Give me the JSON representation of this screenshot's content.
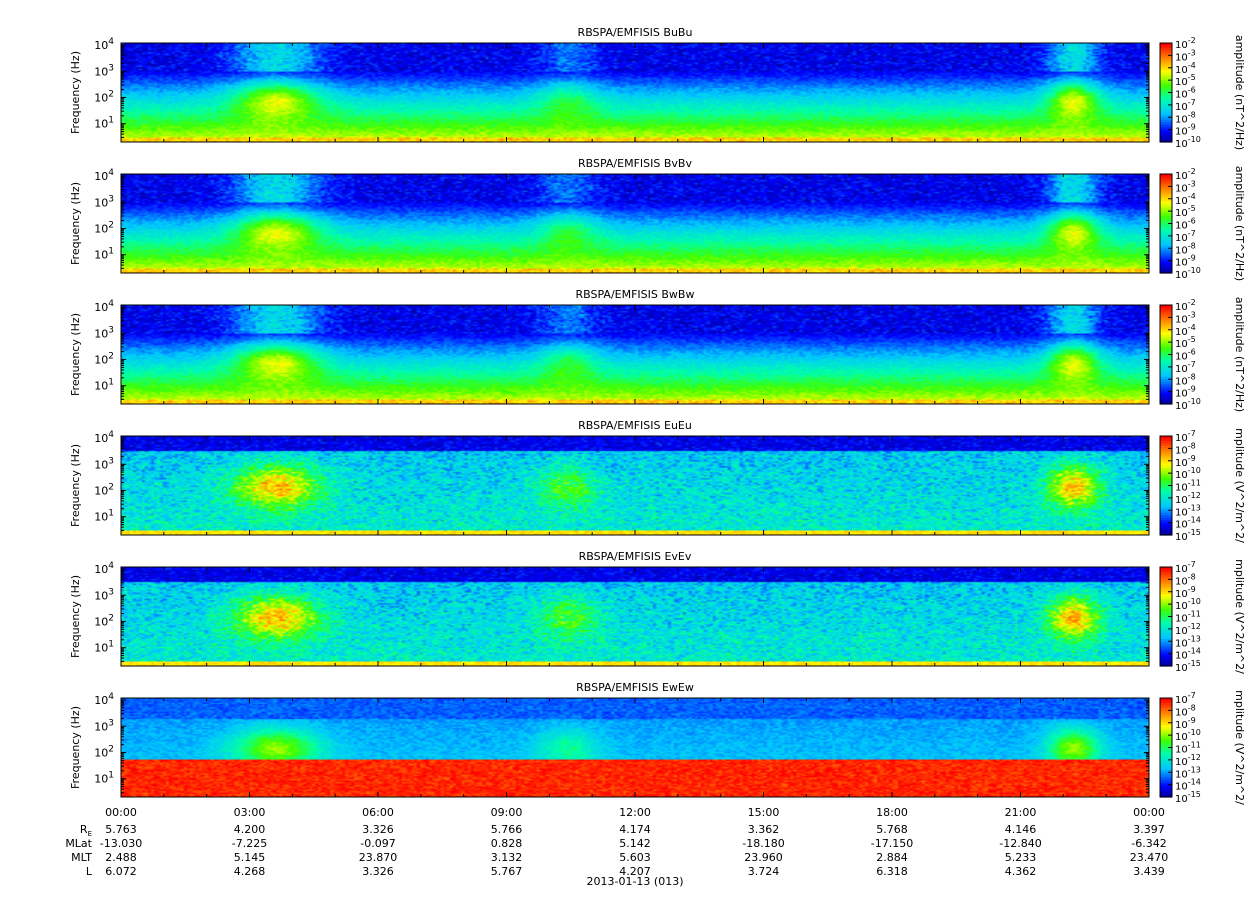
{
  "chart_data": [
    {
      "type": "heatmap",
      "title": "RBSPA/EMFISIS  BuBu",
      "ylabel": "Frequency (Hz)",
      "yscale": "log",
      "ylim": [
        2,
        12000
      ],
      "y_ticks": [
        10,
        100,
        1000,
        10000
      ],
      "y_tick_labels": [
        "10",
        "10",
        "10",
        "10"
      ],
      "y_tick_exps": [
        "1",
        "2",
        "3",
        "4"
      ],
      "colorbar": {
        "label": "amplitude (nT^2/Hz)",
        "scale": "log",
        "range": [
          1e-10,
          0.01
        ],
        "tick_exps": [
          "-2",
          "-3",
          "-4",
          "-5",
          "-6",
          "-7",
          "-8",
          "-9",
          "-10"
        ]
      }
    },
    {
      "type": "heatmap",
      "title": "RBSPA/EMFISIS  BvBv",
      "ylabel": "Frequency (Hz)",
      "yscale": "log",
      "ylim": [
        2,
        12000
      ],
      "y_ticks": [
        10,
        100,
        1000,
        10000
      ],
      "y_tick_labels": [
        "10",
        "10",
        "10",
        "10"
      ],
      "y_tick_exps": [
        "1",
        "2",
        "3",
        "4"
      ],
      "colorbar": {
        "label": "amplitude (nT^2/Hz)",
        "scale": "log",
        "range": [
          1e-10,
          0.01
        ],
        "tick_exps": [
          "-2",
          "-3",
          "-4",
          "-5",
          "-6",
          "-7",
          "-8",
          "-9",
          "-10"
        ]
      }
    },
    {
      "type": "heatmap",
      "title": "RBSPA/EMFISIS  BwBw",
      "ylabel": "Frequency (Hz)",
      "yscale": "log",
      "ylim": [
        2,
        12000
      ],
      "y_ticks": [
        10,
        100,
        1000,
        10000
      ],
      "y_tick_labels": [
        "10",
        "10",
        "10",
        "10"
      ],
      "y_tick_exps": [
        "1",
        "2",
        "3",
        "4"
      ],
      "colorbar": {
        "label": "amplitude (nT^2/Hz)",
        "scale": "log",
        "range": [
          1e-10,
          0.01
        ],
        "tick_exps": [
          "-2",
          "-3",
          "-4",
          "-5",
          "-6",
          "-7",
          "-8",
          "-9",
          "-10"
        ]
      }
    },
    {
      "type": "heatmap",
      "title": "RBSPA/EMFISIS  EuEu",
      "ylabel": "Frequency (Hz)",
      "yscale": "log",
      "ylim": [
        2,
        12000
      ],
      "y_ticks": [
        10,
        100,
        1000,
        10000
      ],
      "y_tick_labels": [
        "10",
        "10",
        "10",
        "10"
      ],
      "y_tick_exps": [
        "1",
        "2",
        "3",
        "4"
      ],
      "colorbar": {
        "label": "mplitude (V^2/m^2/",
        "scale": "log",
        "range": [
          1e-15,
          1e-07
        ],
        "tick_exps": [
          "-7",
          "-8",
          "-9",
          "-10",
          "-11",
          "-12",
          "-13",
          "-14",
          "-15"
        ]
      }
    },
    {
      "type": "heatmap",
      "title": "RBSPA/EMFISIS  EvEv",
      "ylabel": "Frequency (Hz)",
      "yscale": "log",
      "ylim": [
        2,
        12000
      ],
      "y_ticks": [
        10,
        100,
        1000,
        10000
      ],
      "y_tick_labels": [
        "10",
        "10",
        "10",
        "10"
      ],
      "y_tick_exps": [
        "1",
        "2",
        "3",
        "4"
      ],
      "colorbar": {
        "label": "mplitude (V^2/m^2/",
        "scale": "log",
        "range": [
          1e-15,
          1e-07
        ],
        "tick_exps": [
          "-7",
          "-8",
          "-9",
          "-10",
          "-11",
          "-12",
          "-13",
          "-14",
          "-15"
        ]
      }
    },
    {
      "type": "heatmap",
      "title": "RBSPA/EMFISIS  EwEw",
      "ylabel": "Frequency (Hz)",
      "yscale": "log",
      "ylim": [
        2,
        12000
      ],
      "y_ticks": [
        10,
        100,
        1000,
        10000
      ],
      "y_tick_labels": [
        "10",
        "10",
        "10",
        "10"
      ],
      "y_tick_exps": [
        "1",
        "2",
        "3",
        "4"
      ],
      "colorbar": {
        "label": "mplitude (V^2/m^2/",
        "scale": "log",
        "range": [
          1e-15,
          1e-07
        ],
        "tick_exps": [
          "-7",
          "-8",
          "-9",
          "-10",
          "-11",
          "-12",
          "-13",
          "-14",
          "-15"
        ]
      }
    }
  ],
  "time_axis": {
    "tick_labels": [
      "00:00",
      "03:00",
      "06:00",
      "09:00",
      "12:00",
      "15:00",
      "18:00",
      "21:00",
      "00:00"
    ],
    "date_label": "2013-01-13 (013)",
    "ephemeris": [
      {
        "label": "R",
        "subscript": "E",
        "values": [
          "5.763",
          "4.200",
          "3.326",
          "5.766",
          "4.174",
          "3.362",
          "5.768",
          "4.146",
          "3.397"
        ]
      },
      {
        "label": "MLat",
        "subscript": "",
        "values": [
          "-13.030",
          "-7.225",
          "-0.097",
          "0.828",
          "5.142",
          "-18.180",
          "-17.150",
          "-12.840",
          "-6.342"
        ]
      },
      {
        "label": "MLT",
        "subscript": "",
        "values": [
          "2.488",
          "5.145",
          "23.870",
          "3.132",
          "5.603",
          "23.960",
          "2.884",
          "5.233",
          "23.470"
        ]
      },
      {
        "label": "L",
        "subscript": "",
        "values": [
          "6.072",
          "4.268",
          "3.326",
          "5.767",
          "4.207",
          "3.724",
          "6.318",
          "4.362",
          "3.439"
        ]
      }
    ]
  }
}
